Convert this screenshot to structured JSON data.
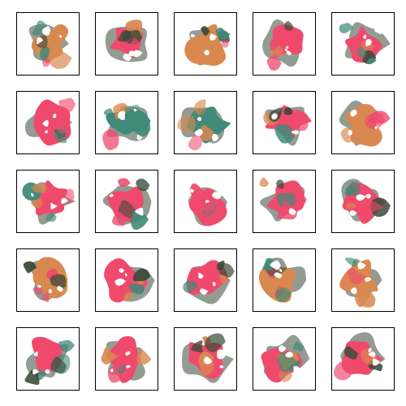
{
  "grid": {
    "rows": 5,
    "columns": 5
  },
  "palette": {
    "pink": "#ef4a6c",
    "orange": "#d9884f",
    "teal": "#3f8a78",
    "dark": "#3b4a3a",
    "background": "#ffffff",
    "frame": "#000000"
  },
  "tiles": [
    {
      "row": 1,
      "col": 1,
      "dominant": "orange"
    },
    {
      "row": 1,
      "col": 2,
      "dominant": "pink"
    },
    {
      "row": 1,
      "col": 3,
      "dominant": "orange"
    },
    {
      "row": 1,
      "col": 4,
      "dominant": "pink"
    },
    {
      "row": 1,
      "col": 5,
      "dominant": "pink"
    },
    {
      "row": 2,
      "col": 1,
      "dominant": "pink"
    },
    {
      "row": 2,
      "col": 2,
      "dominant": "teal"
    },
    {
      "row": 2,
      "col": 3,
      "dominant": "teal"
    },
    {
      "row": 2,
      "col": 4,
      "dominant": "pink"
    },
    {
      "row": 2,
      "col": 5,
      "dominant": "orange"
    },
    {
      "row": 3,
      "col": 1,
      "dominant": "pink"
    },
    {
      "row": 3,
      "col": 2,
      "dominant": "pink"
    },
    {
      "row": 3,
      "col": 3,
      "dominant": "pink"
    },
    {
      "row": 3,
      "col": 4,
      "dominant": "pink"
    },
    {
      "row": 3,
      "col": 5,
      "dominant": "pink"
    },
    {
      "row": 4,
      "col": 1,
      "dominant": "orange"
    },
    {
      "row": 4,
      "col": 2,
      "dominant": "pink"
    },
    {
      "row": 4,
      "col": 3,
      "dominant": "pink"
    },
    {
      "row": 4,
      "col": 4,
      "dominant": "orange"
    },
    {
      "row": 4,
      "col": 5,
      "dominant": "orange"
    },
    {
      "row": 5,
      "col": 1,
      "dominant": "pink"
    },
    {
      "row": 5,
      "col": 2,
      "dominant": "pink"
    },
    {
      "row": 5,
      "col": 3,
      "dominant": "pink"
    },
    {
      "row": 5,
      "col": 4,
      "dominant": "pink"
    },
    {
      "row": 5,
      "col": 5,
      "dominant": "pink"
    }
  ]
}
